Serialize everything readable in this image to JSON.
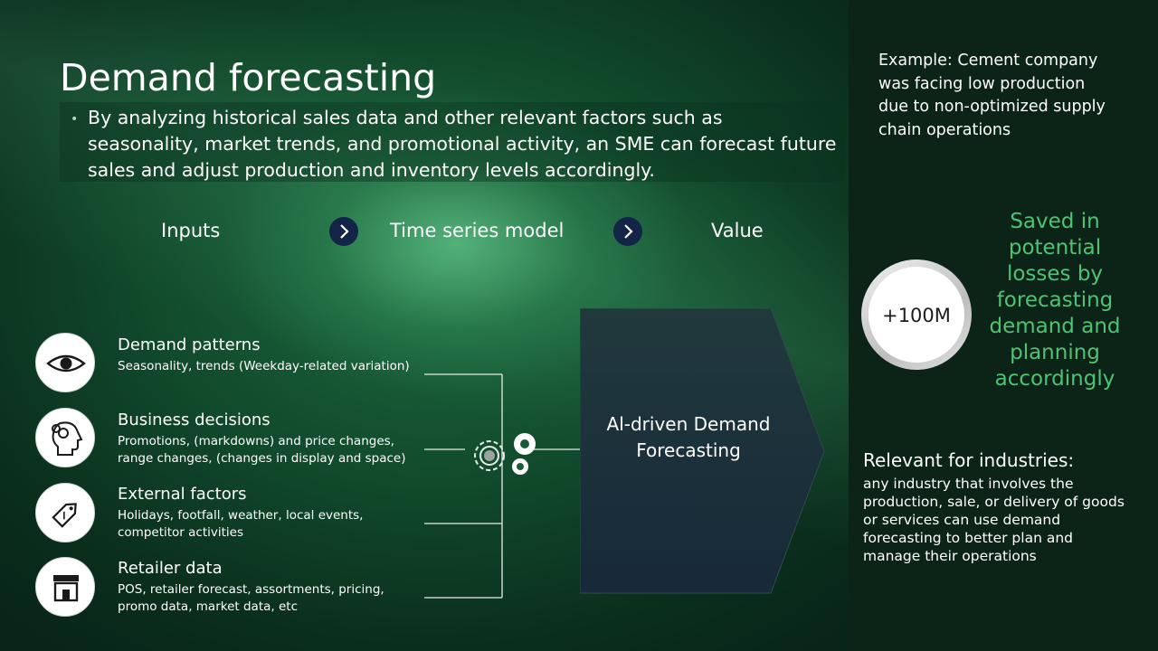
{
  "title": "Demand forecasting",
  "description": "By analyzing historical sales data and other relevant factors such as seasonality, market trends, and promotional activity, an SME can forecast future sales and adjust production and inventory levels accordingly.",
  "flow": {
    "inputs": "Inputs",
    "model": "Time series model",
    "value": "Value"
  },
  "inputs": [
    {
      "title": "Demand patterns",
      "subtitle": "Seasonality, trends (Weekday-related variation)",
      "icon": "eye-icon"
    },
    {
      "title": "Business decisions",
      "subtitle": "Promotions, (markdowns) and price changes, range changes, (changes in display and space)",
      "icon": "head-gears-icon"
    },
    {
      "title": "External factors",
      "subtitle": "Holidays, footfall, weather, local events, competitor activities",
      "icon": "price-tag-icon"
    },
    {
      "title": "Retailer data",
      "subtitle": "POS, retailer forecast, assortments, pricing, promo data, market data, etc",
      "icon": "store-icon"
    }
  ],
  "center": {
    "label": "Al-driven Demand Forecasting"
  },
  "side": {
    "example": "Example: Cement company was facing low production due to non-optimized supply chain operations",
    "metric": "+100M",
    "saved": "Saved in potential losses by forecasting demand and planning accordingly",
    "relevant_title": "Relevant for industries:",
    "relevant_text": "any industry that involves the production, sale, or delivery of goods or services can use demand forecasting to better plan and manage their operations"
  },
  "colors": {
    "accent_green": "#4fc273",
    "navy": "#142446",
    "panel_dark": "#0c2418",
    "pentagon_fill": "#1a2c36"
  }
}
